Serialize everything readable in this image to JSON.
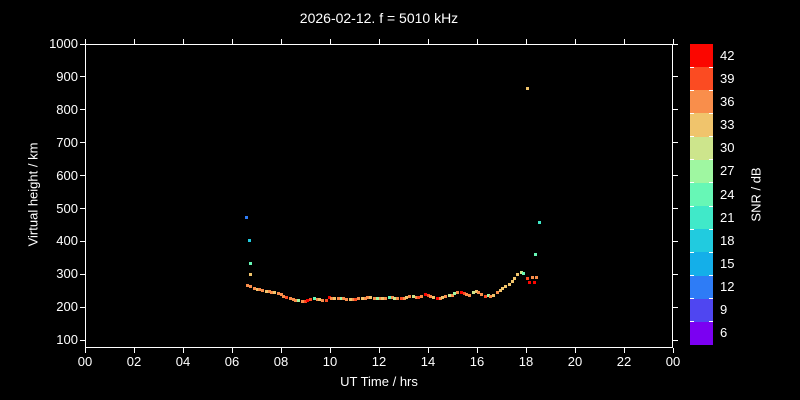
{
  "chart_data": {
    "type": "scatter",
    "title": "2026-02-12. f = 5010 kHz",
    "xlabel": "UT Time / hrs",
    "ylabel": "Virtual height / km",
    "xlim": [
      0,
      24
    ],
    "ylim": [
      76,
      1000
    ],
    "grid": false,
    "x_ticks_hours": [
      0,
      2,
      4,
      6,
      8,
      10,
      12,
      14,
      16,
      18,
      20,
      22,
      24
    ],
    "x_tick_labels": [
      "00",
      "02",
      "04",
      "06",
      "08",
      "10",
      "12",
      "14",
      "16",
      "18",
      "20",
      "22",
      "00"
    ],
    "y_ticks": [
      100,
      200,
      300,
      400,
      500,
      600,
      700,
      800,
      900,
      1000
    ],
    "colorbar": {
      "label": "SNR / dB",
      "tick_labels_top_to_bottom": [
        42,
        39,
        36,
        33,
        30,
        27,
        24,
        21,
        18,
        15,
        12,
        9,
        6
      ],
      "palette": {
        "42": "#fb0600",
        "39": "#fb4b22",
        "36": "#f98e4b",
        "33": "#f0c46c",
        "30": "#cde58c",
        "27": "#9ff7a1",
        "24": "#67f7b6",
        "21": "#40e9c9",
        "18": "#21cbdf",
        "15": "#14afe9",
        "12": "#2e7cf6",
        "9": "#4f46f1",
        "6": "#7b00f2"
      }
    },
    "points_format": [
      "ut_hours",
      "virtual_height_km",
      "snr_db"
    ],
    "points": [
      [
        6.54,
        476,
        12
      ],
      [
        6.67,
        406,
        18
      ],
      [
        6.71,
        336,
        24
      ],
      [
        6.73,
        301,
        33
      ],
      [
        6.59,
        269,
        36
      ],
      [
        6.73,
        266,
        36
      ],
      [
        6.86,
        261,
        36
      ],
      [
        6.98,
        258,
        33
      ],
      [
        7.1,
        257,
        36
      ],
      [
        7.22,
        254,
        36
      ],
      [
        7.35,
        252,
        33
      ],
      [
        7.47,
        251,
        36
      ],
      [
        7.59,
        249,
        36
      ],
      [
        7.71,
        247,
        33
      ],
      [
        7.84,
        246,
        36
      ],
      [
        7.96,
        241,
        36
      ],
      [
        8.08,
        237,
        36
      ],
      [
        8.2,
        232,
        39
      ],
      [
        8.33,
        228,
        36
      ],
      [
        8.45,
        225,
        36
      ],
      [
        8.57,
        223,
        36
      ],
      [
        8.69,
        222,
        27
      ],
      [
        8.82,
        220,
        36
      ],
      [
        8.94,
        220,
        39
      ],
      [
        9.06,
        222,
        42
      ],
      [
        9.18,
        226,
        39
      ],
      [
        9.31,
        228,
        24
      ],
      [
        9.43,
        226,
        36
      ],
      [
        9.55,
        225,
        33
      ],
      [
        9.67,
        223,
        36
      ],
      [
        9.8,
        223,
        39
      ],
      [
        9.92,
        232,
        42
      ],
      [
        10.04,
        231,
        36
      ],
      [
        10.16,
        229,
        33
      ],
      [
        10.29,
        228,
        36
      ],
      [
        10.41,
        231,
        27
      ],
      [
        10.53,
        228,
        36
      ],
      [
        10.65,
        226,
        36
      ],
      [
        10.78,
        225,
        33
      ],
      [
        10.9,
        225,
        36
      ],
      [
        11.02,
        226,
        39
      ],
      [
        11.14,
        228,
        36
      ],
      [
        11.27,
        229,
        33
      ],
      [
        11.39,
        231,
        36
      ],
      [
        11.51,
        232,
        36
      ],
      [
        11.63,
        232,
        33
      ],
      [
        11.76,
        231,
        36
      ],
      [
        11.88,
        229,
        27
      ],
      [
        12.0,
        228,
        36
      ],
      [
        12.12,
        228,
        33
      ],
      [
        12.24,
        231,
        36
      ],
      [
        12.37,
        234,
        24
      ],
      [
        12.49,
        232,
        36
      ],
      [
        12.61,
        231,
        30
      ],
      [
        12.73,
        229,
        36
      ],
      [
        12.86,
        228,
        39
      ],
      [
        12.98,
        231,
        36
      ],
      [
        13.1,
        234,
        33
      ],
      [
        13.22,
        237,
        36
      ],
      [
        13.35,
        235,
        30
      ],
      [
        13.47,
        234,
        36
      ],
      [
        13.59,
        232,
        39
      ],
      [
        13.71,
        237,
        36
      ],
      [
        13.84,
        243,
        42
      ],
      [
        13.96,
        240,
        39
      ],
      [
        14.08,
        237,
        36
      ],
      [
        14.2,
        232,
        33
      ],
      [
        14.33,
        231,
        42
      ],
      [
        14.45,
        229,
        36
      ],
      [
        14.57,
        234,
        33
      ],
      [
        14.69,
        237,
        36
      ],
      [
        14.82,
        238,
        30
      ],
      [
        14.94,
        240,
        36
      ],
      [
        15.06,
        246,
        27
      ],
      [
        15.18,
        249,
        36
      ],
      [
        15.31,
        247,
        42
      ],
      [
        15.43,
        246,
        39
      ],
      [
        15.55,
        243,
        36
      ],
      [
        15.67,
        240,
        36
      ],
      [
        15.8,
        249,
        30
      ],
      [
        15.92,
        252,
        33
      ],
      [
        16.04,
        249,
        36
      ],
      [
        16.16,
        243,
        36
      ],
      [
        16.29,
        237,
        39
      ],
      [
        16.41,
        240,
        27
      ],
      [
        16.53,
        237,
        36
      ],
      [
        16.65,
        240,
        33
      ],
      [
        16.78,
        247,
        36
      ],
      [
        16.9,
        254,
        33
      ],
      [
        17.02,
        261,
        33
      ],
      [
        17.14,
        267,
        33
      ],
      [
        17.27,
        273,
        33
      ],
      [
        17.39,
        282,
        33
      ],
      [
        17.51,
        290,
        33
      ],
      [
        17.63,
        302,
        33
      ],
      [
        17.76,
        310,
        30
      ],
      [
        17.84,
        304,
        24
      ],
      [
        18.0,
        289,
        39
      ],
      [
        18.12,
        278,
        42
      ],
      [
        18.22,
        293,
        36
      ],
      [
        18.31,
        279,
        42
      ],
      [
        18.39,
        292,
        36
      ],
      [
        18.33,
        363,
        24
      ],
      [
        18.49,
        460,
        21
      ],
      [
        18.0,
        869,
        33
      ]
    ]
  }
}
